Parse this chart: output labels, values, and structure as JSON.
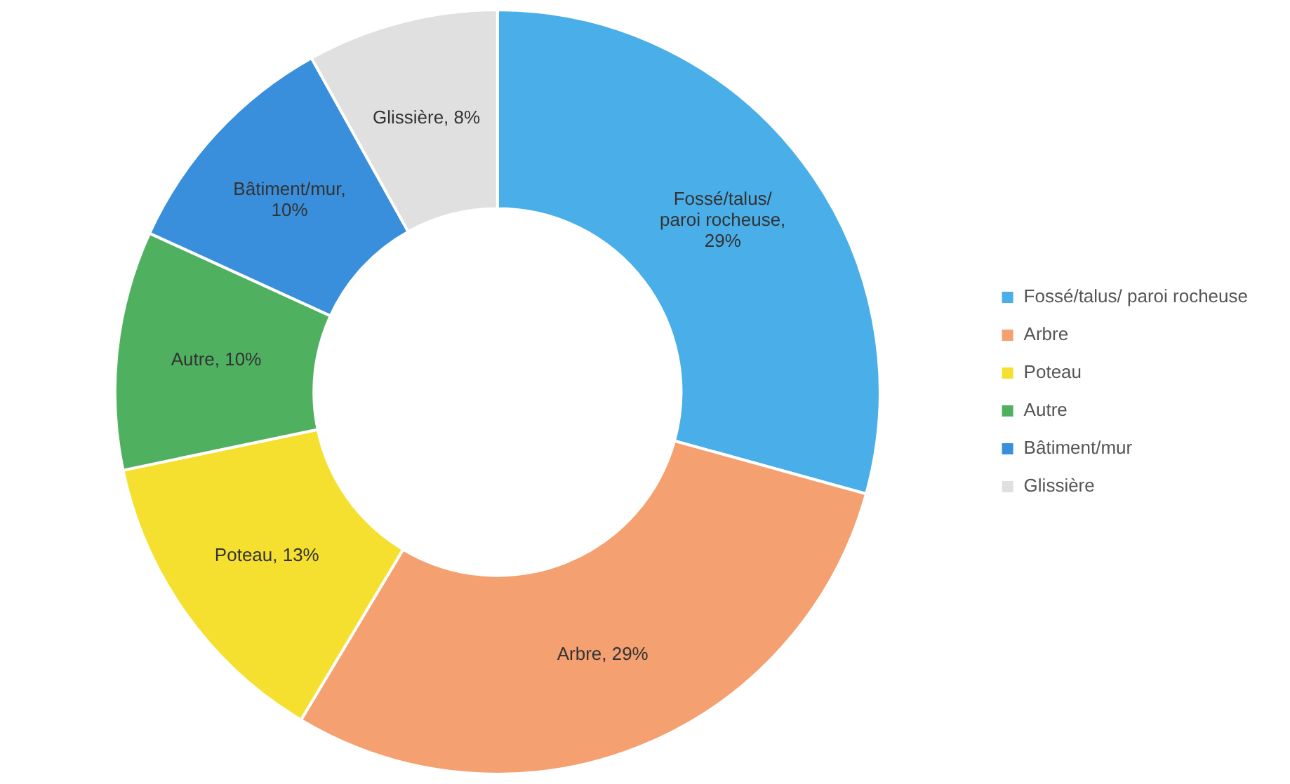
{
  "chart_data": {
    "type": "donut",
    "categories": [
      "Fossé/talus/ paroi rocheuse",
      "Arbre",
      "Poteau",
      "Autre",
      "Bâtiment/mur",
      "Glissière"
    ],
    "values": [
      29,
      29,
      13,
      10,
      10,
      8
    ],
    "colors": [
      "#4aaee8",
      "#f4a070",
      "#f5e030",
      "#4fb060",
      "#3a8fdc",
      "#e0e0e0"
    ],
    "value_labels": [
      "Fossé/talus/ paroi rocheuse, 29%",
      "Arbre, 29%",
      "Poteau, 13%",
      "Autre, 10%",
      "Bâtiment/mur, 10%",
      "Glissière, 8%"
    ],
    "legend": "right"
  }
}
